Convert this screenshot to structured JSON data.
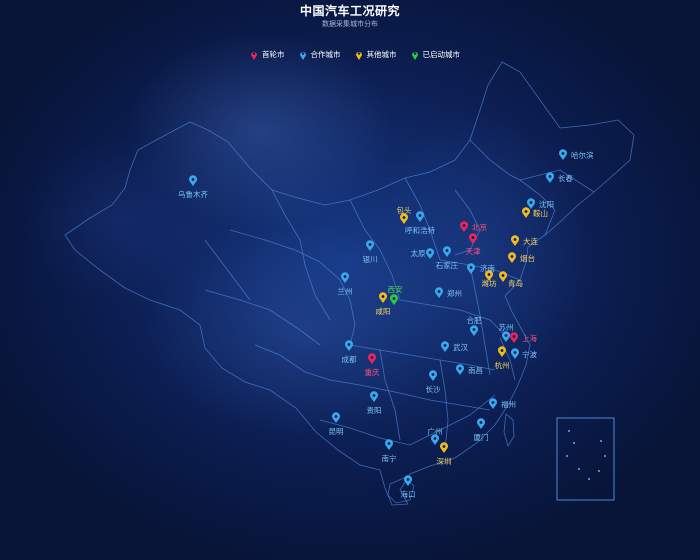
{
  "title": "中国汽车工况研究",
  "subtitle": "数据采集城市分布",
  "legend": [
    {
      "key": "first",
      "label": "首轮市",
      "color": "#e8265e"
    },
    {
      "key": "done",
      "label": "合作城市",
      "color": "#3aa8ee"
    },
    {
      "key": "other",
      "label": "其他城市",
      "color": "#f0bc1f"
    },
    {
      "key": "started",
      "label": "已启动城市",
      "color": "#2ecc46"
    }
  ],
  "cities": [
    {
      "name": "哈尔滨",
      "cat": "done"
    },
    {
      "name": "长春",
      "cat": "done"
    },
    {
      "name": "沈阳",
      "cat": "done"
    },
    {
      "name": "鞍山",
      "cat": "other"
    },
    {
      "name": "大连",
      "cat": "other"
    },
    {
      "name": "乌鲁木齐",
      "cat": "done"
    },
    {
      "name": "包头",
      "cat": "other"
    },
    {
      "name": "呼和浩特",
      "cat": "done"
    },
    {
      "name": "北京",
      "cat": "first"
    },
    {
      "name": "天津",
      "cat": "first"
    },
    {
      "name": "银川",
      "cat": "done"
    },
    {
      "name": "太原",
      "cat": "done"
    },
    {
      "name": "石家庄",
      "cat": "done"
    },
    {
      "name": "济南",
      "cat": "done"
    },
    {
      "name": "烟台",
      "cat": "other"
    },
    {
      "name": "潍坊",
      "cat": "other"
    },
    {
      "name": "青岛",
      "cat": "other"
    },
    {
      "name": "兰州",
      "cat": "done"
    },
    {
      "name": "西安",
      "cat": "started"
    },
    {
      "name": "咸阳",
      "cat": "other"
    },
    {
      "name": "郑州",
      "cat": "done"
    },
    {
      "name": "合肥",
      "cat": "done"
    },
    {
      "name": "苏州",
      "cat": "done"
    },
    {
      "name": "上海",
      "cat": "first"
    },
    {
      "name": "宁波",
      "cat": "done"
    },
    {
      "name": "杭州",
      "cat": "other"
    },
    {
      "name": "成都",
      "cat": "done"
    },
    {
      "name": "重庆",
      "cat": "first"
    },
    {
      "name": "武汉",
      "cat": "done"
    },
    {
      "name": "南昌",
      "cat": "done"
    },
    {
      "name": "长沙",
      "cat": "done"
    },
    {
      "name": "贵阳",
      "cat": "done"
    },
    {
      "name": "福州",
      "cat": "done"
    },
    {
      "name": "厦门",
      "cat": "done"
    },
    {
      "name": "昆明",
      "cat": "done"
    },
    {
      "name": "广州",
      "cat": "done"
    },
    {
      "name": "深圳",
      "cat": "other"
    },
    {
      "name": "南宁",
      "cat": "done"
    },
    {
      "name": "海口",
      "cat": "done"
    }
  ]
}
